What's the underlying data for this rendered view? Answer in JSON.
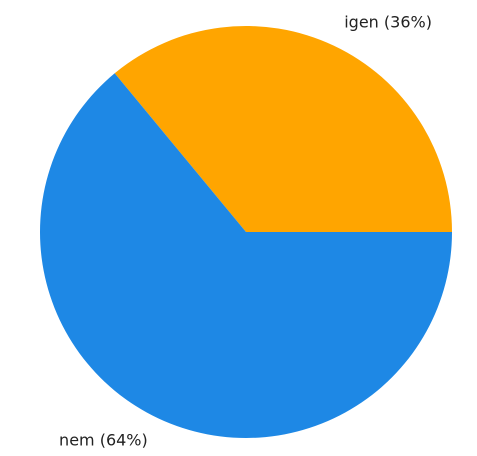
{
  "chart_data": {
    "type": "pie",
    "values": [
      36,
      64
    ],
    "value_labels": [
      "igen (36%)",
      "nem (64%)"
    ],
    "colors": [
      "#ffa500",
      "#1e88e5"
    ],
    "start_angle": 0,
    "direction": "counterclockwise"
  }
}
